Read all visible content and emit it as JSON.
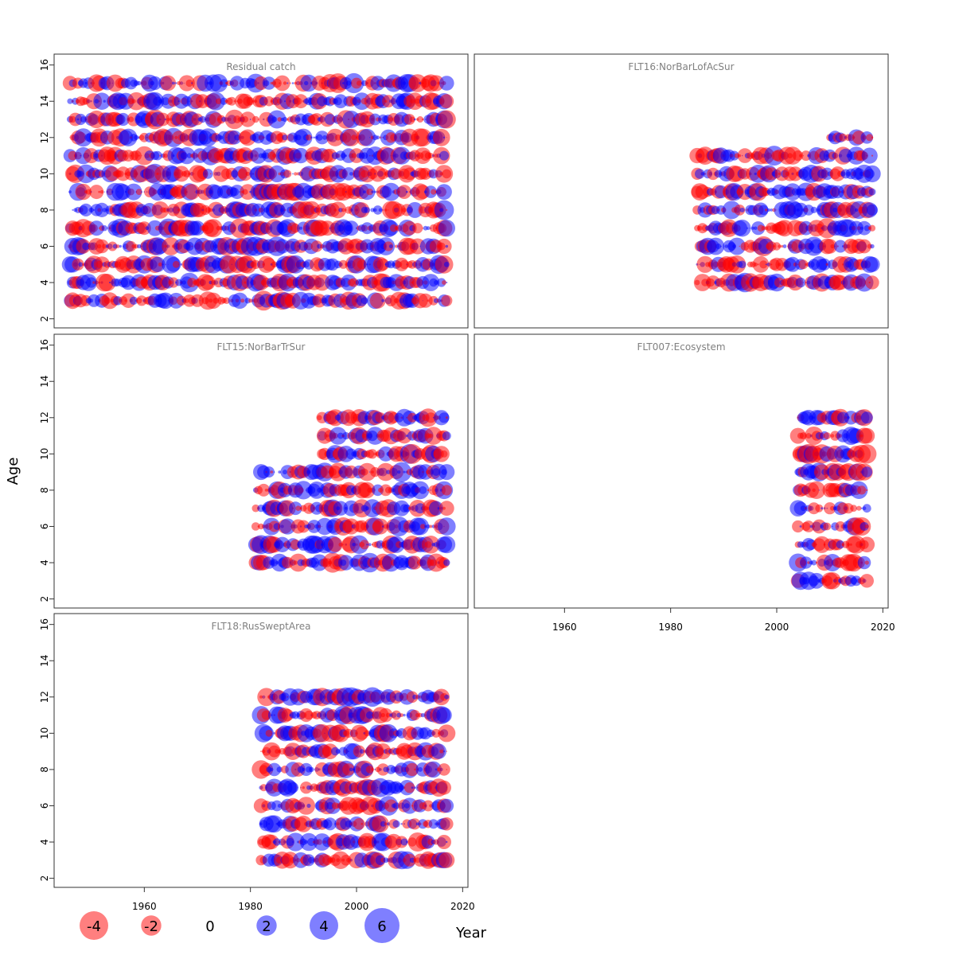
{
  "chart_data": {
    "type": "scatter",
    "subtype": "bubble",
    "xlabel": "Year",
    "ylabel": "Age",
    "xlim": [
      1943,
      2021
    ],
    "ylim": [
      1.5,
      16.6
    ],
    "x_ticks": [
      1960,
      1980,
      2000,
      2020
    ],
    "y_ticks": [
      2,
      4,
      6,
      8,
      10,
      12,
      14,
      16
    ],
    "colors": {
      "positive": "#0000ff",
      "negative": "#ff0000",
      "opacity": 0.5
    },
    "legend": {
      "placement": "bottom",
      "entries": [
        {
          "label": "-4",
          "value": -4
        },
        {
          "label": "-2",
          "value": -2
        },
        {
          "label": "0",
          "value": 0
        },
        {
          "label": "2",
          "value": 2
        },
        {
          "label": "4",
          "value": 4
        },
        {
          "label": "6",
          "value": 6
        }
      ]
    },
    "panels": [
      {
        "name": "Residual catch",
        "years": [
          1946,
          2017
        ],
        "ages": [
          3,
          15
        ],
        "pattern": "dense"
      },
      {
        "name": "FLT16:NorBarLofAcSur",
        "years": [
          1985,
          2018
        ],
        "ages": [
          4,
          12
        ],
        "pattern": "cell-grid"
      },
      {
        "name": "FLT15:NorBarTrSur",
        "years": [
          1981,
          2017
        ],
        "ages": [
          4,
          12
        ],
        "pattern": "cell-grid"
      },
      {
        "name": "FLT007:Ecosystem",
        "years": [
          2004,
          2017
        ],
        "ages": [
          3,
          12
        ],
        "pattern": "cell-grid"
      },
      {
        "name": "FLT18:RusSweptArea",
        "years": [
          1982,
          2017
        ],
        "ages": [
          3,
          12
        ],
        "pattern": "cell-grid"
      }
    ],
    "note": "Residual values are shown as filled circles; area scales with the magnitude of the residual, blue for positive and red for negative."
  }
}
